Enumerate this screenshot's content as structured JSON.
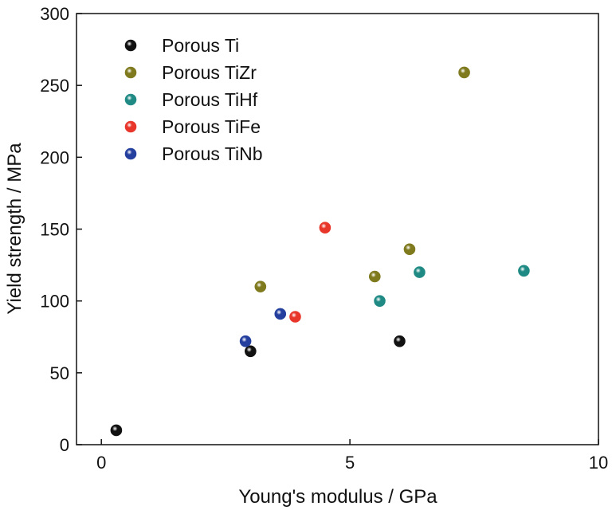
{
  "chart_data": {
    "type": "scatter",
    "xlabel": "Young's modulus / GPa",
    "ylabel": "Yield strength / MPa",
    "xlim": [
      -0.5,
      10
    ],
    "ylim": [
      0,
      300
    ],
    "xticks": [
      0,
      5,
      10
    ],
    "yticks": [
      0,
      50,
      100,
      150,
      200,
      250,
      300
    ],
    "grid": false,
    "legend_position": "top-left",
    "series": [
      {
        "name": "Porous Ti",
        "color": "#111111",
        "points": [
          [
            0.3,
            10
          ],
          [
            3.0,
            65
          ],
          [
            6.0,
            72
          ]
        ]
      },
      {
        "name": "Porous TiZr",
        "color": "#7f7a1e",
        "points": [
          [
            3.2,
            110
          ],
          [
            5.5,
            117
          ],
          [
            6.2,
            136
          ],
          [
            7.3,
            259
          ]
        ]
      },
      {
        "name": "Porous TiHf",
        "color": "#1f8a84",
        "points": [
          [
            5.6,
            100
          ],
          [
            6.4,
            120
          ],
          [
            8.5,
            121
          ]
        ]
      },
      {
        "name": "Porous TiFe",
        "color": "#e8362a",
        "points": [
          [
            3.9,
            89
          ],
          [
            4.5,
            151
          ]
        ]
      },
      {
        "name": "Porous TiNb",
        "color": "#243f9e",
        "points": [
          [
            2.9,
            72
          ],
          [
            3.6,
            91
          ]
        ]
      }
    ]
  }
}
